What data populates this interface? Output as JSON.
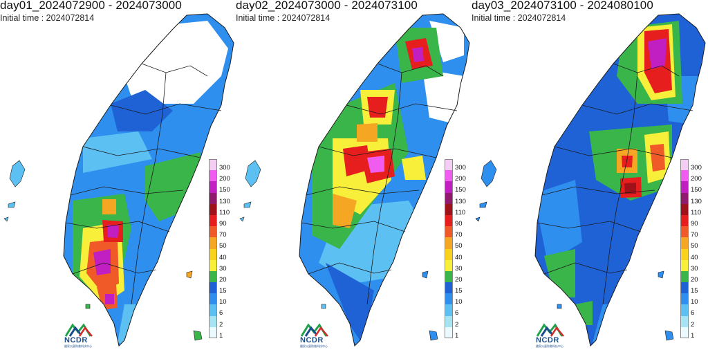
{
  "panels": [
    {
      "title": "day01_2024072900 - 2024073000",
      "subtitle": "Initial time : 2024072814"
    },
    {
      "title": "day02_2024073000 - 2024073100",
      "subtitle": "Initial time : 2024072814"
    },
    {
      "title": "day03_2024073100 - 2024080100",
      "subtitle": "Initial time : 2024072814"
    }
  ],
  "legend": {
    "levels": [
      {
        "label": "300",
        "color": "#f4cdf4"
      },
      {
        "label": "200",
        "color": "#f05cf0"
      },
      {
        "label": "150",
        "color": "#c21fc2"
      },
      {
        "label": "130",
        "color": "#8f1a6e"
      },
      {
        "label": "110",
        "color": "#a0121a"
      },
      {
        "label": "90",
        "color": "#e61e1e"
      },
      {
        "label": "70",
        "color": "#f05a28"
      },
      {
        "label": "50",
        "color": "#f5a623"
      },
      {
        "label": "40",
        "color": "#f8d21c"
      },
      {
        "label": "30",
        "color": "#f8ef3a"
      },
      {
        "label": "20",
        "color": "#39b54a"
      },
      {
        "label": "15",
        "color": "#1f62d6"
      },
      {
        "label": "10",
        "color": "#2f8fef"
      },
      {
        "label": "6",
        "color": "#5cc0f2"
      },
      {
        "label": "2",
        "color": "#a6e3f3"
      },
      {
        "label": "1",
        "color": "#eafaff"
      }
    ]
  },
  "logo": {
    "text": "NCDR",
    "subtext": "國家災害防救科技中心"
  },
  "colors": {
    "background": "#ffffff",
    "boundary": "#1a1a1a"
  }
}
